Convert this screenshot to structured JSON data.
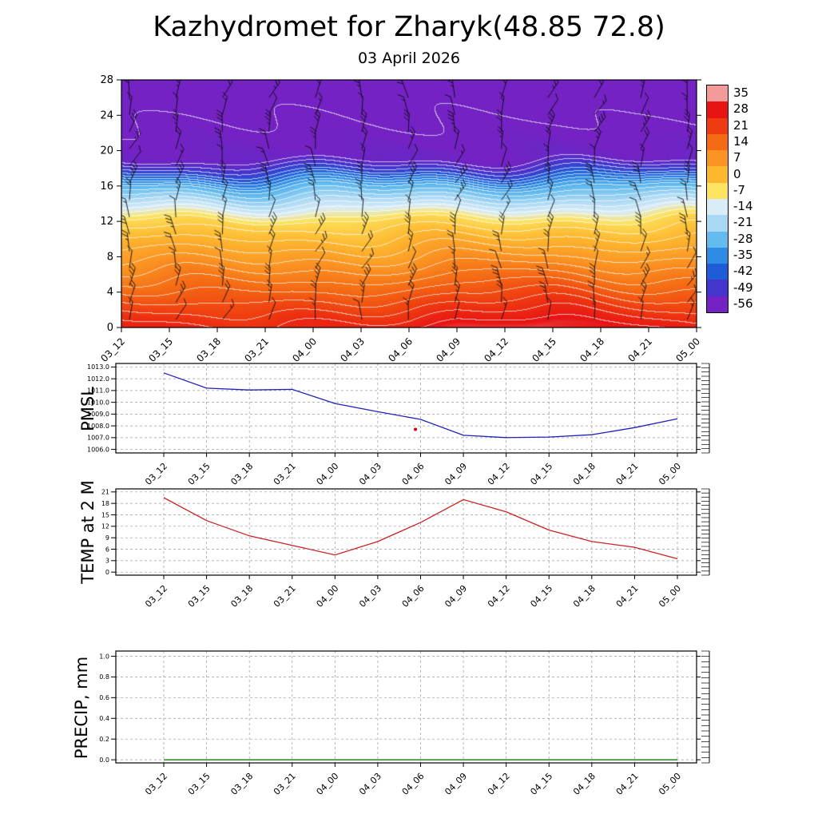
{
  "page": {
    "title": "Kazhydromet for Zharyk(48.85 72.8)",
    "subtitle": "03 April 2026"
  },
  "time_labels": [
    "03_12",
    "03_15",
    "03_18",
    "03_21",
    "04_00",
    "04_03",
    "04_06",
    "04_09",
    "04_12",
    "04_15",
    "04_18",
    "04_21",
    "05_00"
  ],
  "chart_data": [
    {
      "type": "heatmap",
      "name": "temperature-height-time-section",
      "x": [
        "03_12",
        "03_15",
        "03_18",
        "03_21",
        "04_00",
        "04_03",
        "04_06",
        "04_09",
        "04_12",
        "04_15",
        "04_18",
        "04_21",
        "05_00"
      ],
      "ylim": [
        0,
        28
      ],
      "yticks": [
        0,
        4,
        8,
        12,
        16,
        20,
        24,
        28
      ],
      "colorbar": {
        "ticks": [
          35,
          28,
          21,
          14,
          7,
          0,
          -7,
          -14,
          -21,
          -28,
          -35,
          -42,
          -49,
          -56
        ],
        "colors": [
          "#f49a9a",
          "#e81414",
          "#ef3b10",
          "#f56a14",
          "#fb9423",
          "#fdb830",
          "#fde35f",
          "#d9ecf8",
          "#a8d8f4",
          "#64bcee",
          "#2f8ce4",
          "#1f5cd8",
          "#4436cc",
          "#7422c4"
        ]
      },
      "wind_barbs": "wind barbs overlaid at every time step and level",
      "vertical_profile_breakpoints": [
        [
          0,
          27
        ],
        [
          12,
          -5
        ],
        [
          14,
          -18
        ],
        [
          16,
          -30
        ],
        [
          17.5,
          -45
        ],
        [
          19,
          -55
        ],
        [
          28,
          -59
        ]
      ],
      "surface_temp_by_time": [
        27,
        26,
        25,
        24,
        24,
        25,
        27,
        30,
        31,
        30,
        28,
        27,
        26
      ],
      "grid": "off",
      "legend": "colorbar-right"
    },
    {
      "type": "line",
      "name": "pmsl",
      "ylabel": "PMSL",
      "color": "#2222bb",
      "ylim": [
        1005.7,
        1013.3
      ],
      "ytick_values": [
        1006,
        1007,
        1008,
        1009,
        1010,
        1011,
        1012,
        1013
      ],
      "ytick_labels": [
        "1006.0",
        "1007.0",
        "1008.0",
        "1009.0",
        "1010.0",
        "1011.0",
        "1012.0",
        "1013.0"
      ],
      "x": [
        "03_12",
        "03_15",
        "03_18",
        "03_21",
        "04_00",
        "04_03",
        "04_06",
        "04_09",
        "04_12",
        "04_15",
        "04_18",
        "04_21",
        "05_00"
      ],
      "values": [
        1012.5,
        1011.2,
        1011.05,
        1011.1,
        1009.9,
        1009.2,
        1008.55,
        1007.2,
        1007.0,
        1007.05,
        1007.25,
        1007.85,
        1008.6
      ],
      "stray_marker": {
        "x_index": 5.88,
        "value": 1007.7,
        "color": "#cc0000"
      },
      "grid": "dashed"
    },
    {
      "type": "line",
      "name": "temp-2m",
      "ylabel": "TEMP at 2 M",
      "color": "#cc2222",
      "ylim": [
        -0.8,
        21.8
      ],
      "ytick_values": [
        0,
        3,
        6,
        9,
        12,
        15,
        18,
        21
      ],
      "ytick_labels": [
        "0",
        "3",
        "6",
        "9",
        "12",
        "15",
        "18",
        "21"
      ],
      "x": [
        "03_12",
        "03_15",
        "03_18",
        "03_21",
        "04_00",
        "04_03",
        "04_06",
        "04_09",
        "04_12",
        "04_15",
        "04_18",
        "04_21",
        "05_00"
      ],
      "values": [
        19.5,
        13.5,
        9.5,
        7.0,
        4.5,
        8.0,
        13.0,
        19.0,
        15.8,
        11.0,
        8.0,
        6.5,
        3.5
      ],
      "grid": "dashed"
    },
    {
      "type": "line",
      "name": "precip",
      "ylabel": "PRECIP, mm",
      "color": "#006600",
      "ylim": [
        -0.03,
        1.05
      ],
      "ytick_values": [
        0,
        0.2,
        0.4,
        0.6,
        0.8,
        1.0
      ],
      "ytick_labels": [
        "0.0",
        "0.2",
        "0.4",
        "0.6",
        "0.8",
        "1.0"
      ],
      "x": [
        "03_12",
        "03_15",
        "03_18",
        "03_21",
        "04_00",
        "04_03",
        "04_06",
        "04_09",
        "04_12",
        "04_15",
        "04_18",
        "04_21",
        "05_00"
      ],
      "values": [
        0,
        0,
        0,
        0,
        0,
        0,
        0,
        0,
        0,
        0,
        0,
        0,
        0
      ],
      "grid": "dashed"
    }
  ]
}
